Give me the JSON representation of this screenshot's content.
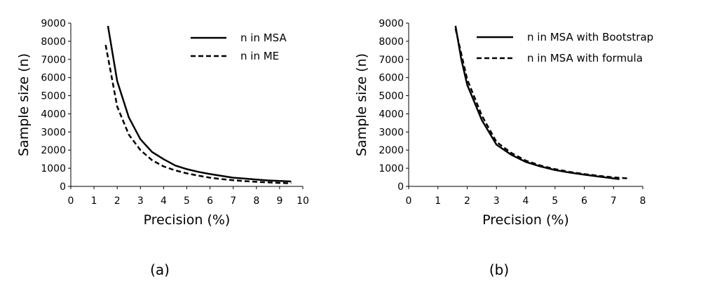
{
  "chart_data": [
    {
      "type": "line",
      "panel_label": "(a)",
      "xlabel": "Precision (%)",
      "ylabel": "Sample size (n)",
      "xlim": [
        0,
        10
      ],
      "ylim": [
        0,
        9000
      ],
      "xticks": [
        0,
        1,
        2,
        3,
        4,
        5,
        6,
        7,
        8,
        9,
        10
      ],
      "yticks": [
        0,
        1000,
        2000,
        3000,
        4000,
        5000,
        6000,
        7000,
        8000,
        9000
      ],
      "legend_position": "top-right",
      "series": [
        {
          "name": "n in MSA",
          "style": "solid",
          "x": [
            1.6,
            2.0,
            2.5,
            3.0,
            3.5,
            4.0,
            4.5,
            5.0,
            5.5,
            6.0,
            6.5,
            7.0,
            7.5,
            8.0,
            8.5,
            9.0,
            9.5
          ],
          "y": [
            8850,
            5800,
            3800,
            2600,
            1900,
            1500,
            1150,
            950,
            800,
            680,
            580,
            480,
            430,
            380,
            330,
            300,
            270
          ]
        },
        {
          "name": "n in ME",
          "style": "dashed",
          "x": [
            1.5,
            2.0,
            2.5,
            3.0,
            3.5,
            4.0,
            4.5,
            5.0,
            5.5,
            6.0,
            6.5,
            7.0,
            7.5,
            8.0,
            8.5,
            9.0,
            9.5
          ],
          "y": [
            7800,
            4400,
            2850,
            2000,
            1450,
            1100,
            880,
            720,
            590,
            480,
            400,
            340,
            290,
            250,
            220,
            190,
            170
          ]
        }
      ]
    },
    {
      "type": "line",
      "panel_label": "(b)",
      "xlabel": "Precision (%)",
      "ylabel": "Sample size (n)",
      "xlim": [
        0,
        8
      ],
      "ylim": [
        0,
        9000
      ],
      "xticks": [
        0,
        1,
        2,
        3,
        4,
        5,
        6,
        7,
        8
      ],
      "yticks": [
        0,
        1000,
        2000,
        3000,
        4000,
        5000,
        6000,
        7000,
        8000,
        9000
      ],
      "legend_position": "top-right",
      "series": [
        {
          "name": "n in MSA with Bootstrap",
          "style": "solid",
          "x": [
            1.6,
            1.8,
            2.0,
            2.5,
            3.0,
            3.5,
            4.0,
            4.5,
            5.0,
            5.5,
            6.0,
            6.5,
            7.0,
            7.2
          ],
          "y": [
            8850,
            7000,
            5600,
            3650,
            2300,
            1750,
            1350,
            1100,
            900,
            760,
            650,
            540,
            440,
            400
          ]
        },
        {
          "name": "n in MSA with formula",
          "style": "dashed",
          "x": [
            1.6,
            1.8,
            2.0,
            2.5,
            3.0,
            3.5,
            4.0,
            4.5,
            5.0,
            5.5,
            6.0,
            6.5,
            7.0,
            7.5
          ],
          "y": [
            8700,
            7300,
            5900,
            3900,
            2450,
            1850,
            1420,
            1150,
            950,
            800,
            680,
            580,
            500,
            440
          ]
        }
      ]
    }
  ]
}
